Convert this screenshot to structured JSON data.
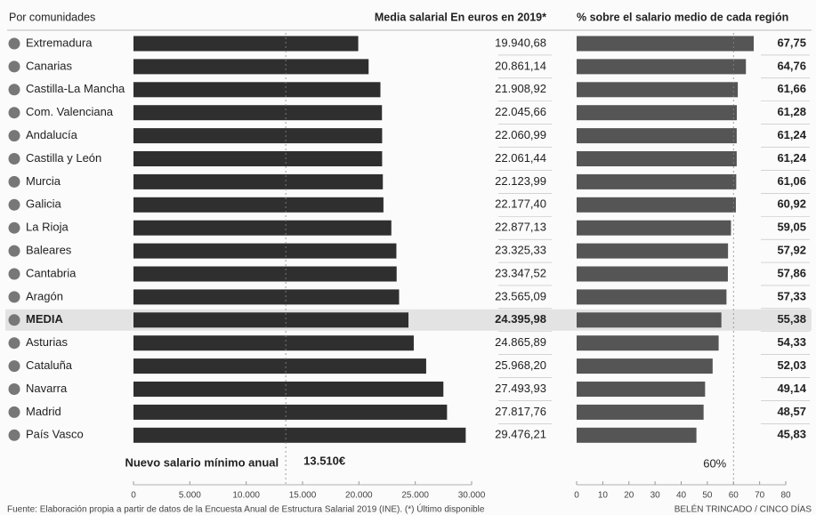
{
  "chart_data": [
    {
      "type": "bar",
      "orientation": "horizontal",
      "y_label": "Por comunidades",
      "title": "Media salarial En euros en 2019*",
      "categories": [
        "Extremadura",
        "Canarias",
        "Castilla-La Mancha",
        "Com. Valenciana",
        "Andalucía",
        "Castilla y León",
        "Murcia",
        "Galicia",
        "La Rioja",
        "Baleares",
        "Cantabria",
        "Aragón",
        "MEDIA",
        "Asturias",
        "Cataluña",
        "Navarra",
        "Madrid",
        "País Vasco"
      ],
      "values": [
        19940.68,
        20861.14,
        21908.92,
        22045.66,
        22060.99,
        22061.44,
        22123.99,
        22177.4,
        22877.13,
        23325.33,
        23347.52,
        23565.09,
        24395.98,
        24865.89,
        25968.2,
        27493.93,
        27817.76,
        29476.21
      ],
      "value_labels": [
        "19.940,68",
        "20.861,14",
        "21.908,92",
        "22.045,66",
        "22.060,99",
        "22.061,44",
        "22.123,99",
        "22.177,40",
        "22.877,13",
        "23.325,33",
        "23.347,52",
        "23.565,09",
        "24.395,98",
        "24.865,89",
        "25.968,20",
        "27.493,93",
        "27.817,76",
        "29.476,21"
      ],
      "color": "#2f2f2f",
      "highlight": 12,
      "xlim": [
        0,
        30000
      ],
      "xticks": [
        0,
        {
          "value": 5000,
          "label": "5.000"
        },
        {
          "value": 10000,
          "label": "10.000"
        },
        {
          "value": 15000,
          "label": "15.000"
        },
        {
          "value": 20000,
          "label": "20.000"
        },
        {
          "value": 25000,
          "label": "25.000"
        },
        {
          "value": 30000,
          "label": "30.000"
        }
      ],
      "annotation": {
        "text": "Nuevo salario mínimo anual",
        "value": 13510,
        "label": "13.510€"
      }
    },
    {
      "type": "bar",
      "orientation": "horizontal",
      "title": "% sobre el salario medio de cada región",
      "values": [
        67.75,
        64.76,
        61.66,
        61.28,
        61.24,
        61.24,
        61.06,
        60.92,
        59.05,
        57.92,
        57.86,
        57.33,
        55.38,
        54.33,
        52.03,
        49.14,
        48.57,
        45.83
      ],
      "value_labels": [
        "67,75",
        "64,76",
        "61,66",
        "61,28",
        "61,24",
        "61,24",
        "61,06",
        "60,92",
        "59,05",
        "57,92",
        "57,86",
        "57,33",
        "55,38",
        "54,33",
        "52,03",
        "49,14",
        "48,57",
        "45,83"
      ],
      "color": "#555555",
      "highlight": 12,
      "xlim": [
        0,
        80
      ],
      "xticks": [
        0,
        10,
        20,
        30,
        40,
        50,
        60,
        70,
        80
      ],
      "annotation": {
        "value": 60,
        "label": "60%"
      }
    }
  ],
  "source": "Fuente: Elaboración propia a partir de datos de la Encuesta Anual de Estructura Salarial 2019 (INE). (*) Último disponible",
  "credit": "BELÉN TRINCADO / CINCO DÍAS"
}
